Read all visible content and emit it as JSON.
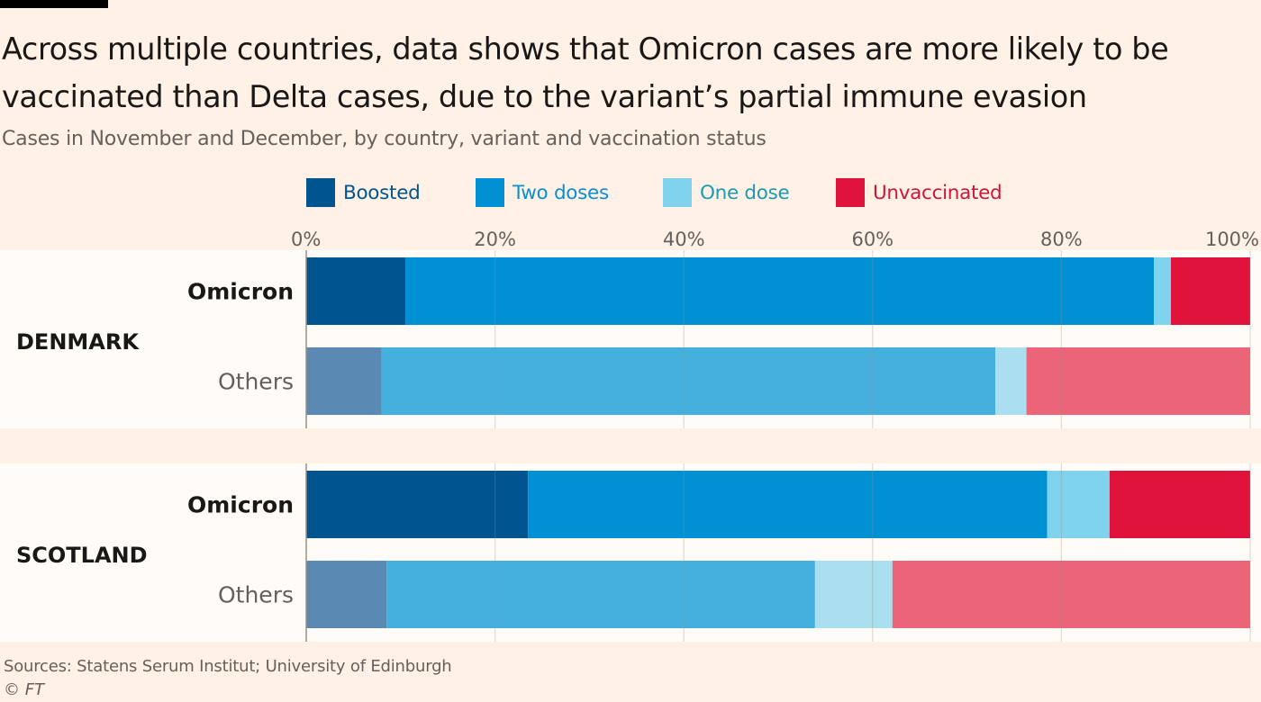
{
  "header": {
    "title": "Across multiple countries, data shows that Omicron cases are more likely to be vaccinated than Delta cases, due to the variant’s partial immune evasion",
    "subtitle": "Cases in November and December, by country, variant and vaccination status"
  },
  "footer": {
    "source": "Sources: Statens Serum Institut; University of Edinburgh",
    "credit": "© FT"
  },
  "chart_data": {
    "type": "bar",
    "orientation": "horizontal",
    "stacked": true,
    "xlim": [
      0,
      100
    ],
    "x_ticks": [
      "0%",
      "20%",
      "40%",
      "60%",
      "80%",
      "100%"
    ],
    "legend_position": "top",
    "series": [
      {
        "name": "Boosted",
        "color": "#00548f",
        "muted_color": "#5a8ab3",
        "text_color": "#00548f"
      },
      {
        "name": "Two doses",
        "color": "#0091d5",
        "muted_color": "#45b0de",
        "text_color": "#0a8fd2"
      },
      {
        "name": "One dose",
        "color": "#7fd3ec",
        "muted_color": "#a9dfee",
        "text_color": "#1d9ab3"
      },
      {
        "name": "Unvaccinated",
        "color": "#e0133c",
        "muted_color": "#ec6477",
        "text_color": "#cf153b"
      }
    ],
    "groups": [
      {
        "country": "DENMARK",
        "bars": [
          {
            "label": "Omicron",
            "highlight": true,
            "values": [
              10.5,
              79.3,
              1.8,
              8.4
            ]
          },
          {
            "label": "Others",
            "highlight": false,
            "values": [
              8.0,
              65.0,
              3.3,
              23.7
            ]
          }
        ]
      },
      {
        "country": "SCOTLAND",
        "bars": [
          {
            "label": "Omicron",
            "highlight": true,
            "values": [
              23.5,
              55.0,
              6.6,
              14.9
            ]
          },
          {
            "label": "Others",
            "highlight": false,
            "values": [
              8.5,
              45.4,
              8.2,
              37.9
            ]
          }
        ]
      }
    ]
  }
}
